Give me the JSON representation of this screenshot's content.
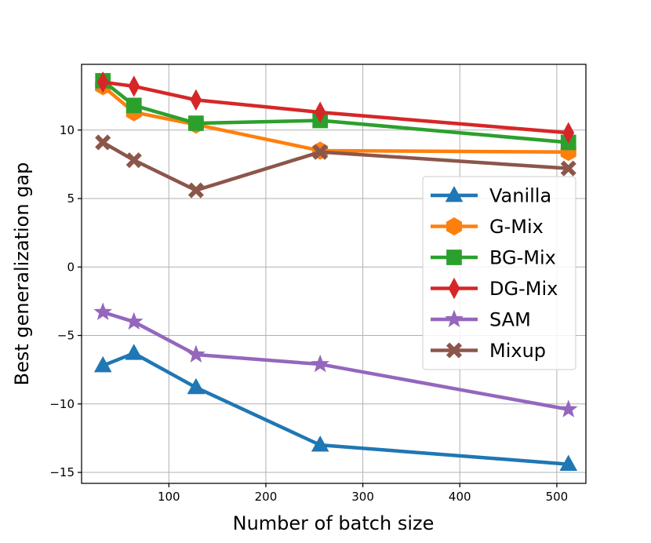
{
  "chart_data": {
    "type": "line",
    "title": "",
    "xlabel": "Number of batch size",
    "ylabel": "Best generalization gap",
    "xlim": [
      10,
      530
    ],
    "ylim": [
      -15.8,
      14.8
    ],
    "xticks": [
      100,
      200,
      300,
      400,
      500
    ],
    "yticks": [
      -15,
      -10,
      -5,
      0,
      5,
      10
    ],
    "grid": true,
    "legend_position": "center-right",
    "x": [
      32,
      64,
      128,
      256,
      512
    ],
    "series": [
      {
        "name": "Vanilla",
        "color": "#1f77b4",
        "marker": "triangle",
        "values": [
          -7.2,
          -6.3,
          -8.8,
          -13.0,
          -14.4
        ]
      },
      {
        "name": "G-Mix",
        "color": "#ff7f0e",
        "marker": "hexagon",
        "values": [
          13.2,
          11.3,
          10.4,
          8.5,
          8.4
        ]
      },
      {
        "name": "BG-Mix",
        "color": "#2ca02c",
        "marker": "square",
        "values": [
          13.6,
          11.8,
          10.5,
          10.7,
          9.1
        ]
      },
      {
        "name": "DG-Mix",
        "color": "#d62728",
        "marker": "diamond",
        "values": [
          13.5,
          13.2,
          12.2,
          11.3,
          9.8
        ]
      },
      {
        "name": "SAM",
        "color": "#9467bd",
        "marker": "star",
        "values": [
          -3.3,
          -4.0,
          -6.4,
          -7.1,
          -10.4
        ]
      },
      {
        "name": "Mixup",
        "color": "#8c564b",
        "marker": "x",
        "values": [
          9.1,
          7.8,
          5.6,
          8.4,
          7.2
        ]
      }
    ]
  }
}
